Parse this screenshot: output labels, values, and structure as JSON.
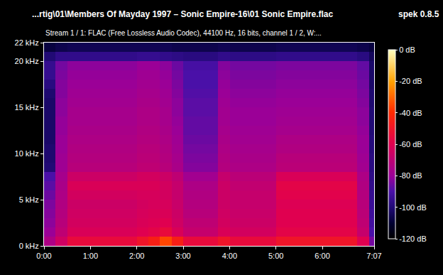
{
  "chart_data": {
    "type": "heatmap",
    "title": "...rtig\\01\\Members Of Mayday 1997 – Sonic Empire-16\\01 Sonic Empire.flac",
    "subtitle": "Stream 1 / 1: FLAC (Free Lossless Audio Codec), 44100 Hz, 16 bits, channel 1 / 2, W:...",
    "annotations": [
      {
        "text": "spek 0.8.5"
      }
    ],
    "grid": false,
    "xlim": [
      0,
      427
    ],
    "xticks": [
      {
        "value": 0,
        "label": "0:00"
      },
      {
        "value": 60,
        "label": "1:00"
      },
      {
        "value": 120,
        "label": "2:00"
      },
      {
        "value": 180,
        "label": "3:00"
      },
      {
        "value": 240,
        "label": "4:00"
      },
      {
        "value": 300,
        "label": "5:00"
      },
      {
        "value": 360,
        "label": "6:00"
      },
      {
        "value": 427,
        "label": "7:07"
      }
    ],
    "ylim": [
      0,
      22
    ],
    "yticks": [
      {
        "value": 0,
        "label": "0 kHz"
      },
      {
        "value": 5,
        "label": "5 kHz"
      },
      {
        "value": 10,
        "label": "10 kHz"
      },
      {
        "value": 15,
        "label": "15 kHz"
      },
      {
        "value": 20,
        "label": "20 kHz"
      },
      {
        "value": 22,
        "label": "22 kHz"
      }
    ],
    "colorbar": {
      "range": [
        -120,
        0
      ],
      "ticks": [
        {
          "value": 0,
          "label": "0 dB"
        },
        {
          "value": -20,
          "label": "-20 dB"
        },
        {
          "value": -40,
          "label": "-40 dB"
        },
        {
          "value": -60,
          "label": "-60 dB"
        },
        {
          "value": -80,
          "label": "-80 dB"
        },
        {
          "value": -100,
          "label": "-100 dB"
        },
        {
          "value": -120,
          "label": "-120 dB"
        }
      ]
    },
    "x": [
      7.5,
      22.5,
      37.5,
      52.5,
      67.5,
      82.5,
      97.5,
      112.5,
      127.5,
      142.5,
      157.5,
      172.5,
      187.5,
      202.5,
      217.5,
      232.5,
      247.5,
      262.5,
      277.5,
      292.5,
      307.5,
      322.5,
      337.5,
      352.5,
      367.5,
      382.5,
      397.5,
      412.5,
      427.5
    ],
    "y": [
      0.5,
      1.5,
      2.5,
      3.5,
      4.5,
      5.5,
      6.5,
      7.5,
      8.5,
      9.5,
      10.5,
      11.5,
      12.5,
      13.5,
      14.5,
      15.5,
      16.5,
      17.5,
      18.5,
      19.5,
      20.5,
      21.5
    ],
    "cells": [
      [
        -75,
        -65,
        -55,
        -55,
        -55,
        -55,
        -55,
        -55,
        -50,
        -45,
        -35,
        -45,
        -55,
        -55,
        -55,
        -50,
        -55,
        -55,
        -55,
        -55,
        -50,
        -50,
        -50,
        -50,
        -50,
        -50,
        -50,
        -60,
        -85
      ],
      [
        -80,
        -70,
        -62,
        -62,
        -62,
        -62,
        -62,
        -62,
        -60,
        -58,
        -55,
        -62,
        -68,
        -68,
        -68,
        -62,
        -64,
        -64,
        -64,
        -64,
        -58,
        -58,
        -58,
        -58,
        -58,
        -58,
        -58,
        -68,
        -90
      ],
      [
        -82,
        -72,
        -64,
        -64,
        -64,
        -64,
        -64,
        -64,
        -62,
        -61,
        -60,
        -65,
        -70,
        -70,
        -70,
        -64,
        -66,
        -66,
        -66,
        -66,
        -60,
        -60,
        -60,
        -60,
        -60,
        -60,
        -60,
        -70,
        -92
      ],
      [
        -83,
        -73,
        -65,
        -65,
        -65,
        -65,
        -65,
        -65,
        -63,
        -62,
        -62,
        -66,
        -72,
        -72,
        -72,
        -65,
        -67,
        -67,
        -67,
        -67,
        -60,
        -60,
        -60,
        -60,
        -60,
        -60,
        -60,
        -71,
        -93
      ],
      [
        -84,
        -74,
        -66,
        -66,
        -66,
        -66,
        -66,
        -66,
        -64,
        -63,
        -63,
        -67,
        -73,
        -73,
        -73,
        -66,
        -68,
        -68,
        -68,
        -68,
        -61,
        -61,
        -61,
        -61,
        -61,
        -61,
        -61,
        -72,
        -94
      ],
      [
        -86,
        -75,
        -64,
        -64,
        -64,
        -64,
        -64,
        -64,
        -63,
        -63,
        -64,
        -68,
        -74,
        -74,
        -74,
        -66,
        -68,
        -68,
        -68,
        -68,
        -59,
        -59,
        -59,
        -59,
        -59,
        -59,
        -59,
        -73,
        -95
      ],
      [
        -88,
        -76,
        -62,
        -62,
        -62,
        -62,
        -62,
        -62,
        -62,
        -62,
        -64,
        -68,
        -75,
        -75,
        -75,
        -66,
        -69,
        -69,
        -69,
        -69,
        -58,
        -58,
        -58,
        -58,
        -58,
        -58,
        -58,
        -74,
        -96
      ],
      [
        -90,
        -77,
        -66,
        -66,
        -66,
        -66,
        -66,
        -66,
        -64,
        -64,
        -66,
        -70,
        -78,
        -78,
        -78,
        -68,
        -71,
        -71,
        -71,
        -71,
        -62,
        -62,
        -62,
        -62,
        -62,
        -62,
        -62,
        -75,
        -97
      ],
      [
        -100,
        -79,
        -72,
        -72,
        -72,
        -72,
        -72,
        -72,
        -70,
        -70,
        -72,
        -76,
        -83,
        -83,
        -83,
        -73,
        -75,
        -75,
        -75,
        -75,
        -71,
        -71,
        -71,
        -71,
        -71,
        -71,
        -71,
        -78,
        -98
      ],
      [
        -101,
        -79,
        -73,
        -73,
        -73,
        -73,
        -73,
        -73,
        -71,
        -71,
        -73,
        -77,
        -84,
        -84,
        -84,
        -74,
        -76,
        -76,
        -76,
        -76,
        -72,
        -72,
        -72,
        -72,
        -72,
        -72,
        -72,
        -79,
        -98
      ],
      [
        -101,
        -80,
        -74,
        -74,
        -74,
        -74,
        -74,
        -74,
        -72,
        -72,
        -74,
        -78,
        -85,
        -85,
        -85,
        -75,
        -77,
        -77,
        -77,
        -77,
        -74,
        -74,
        -74,
        -74,
        -74,
        -74,
        -74,
        -80,
        -99
      ],
      [
        -102,
        -80,
        -75,
        -75,
        -75,
        -75,
        -75,
        -75,
        -73,
        -73,
        -75,
        -79,
        -86,
        -86,
        -86,
        -76,
        -78,
        -78,
        -78,
        -78,
        -75,
        -75,
        -75,
        -75,
        -75,
        -75,
        -75,
        -80,
        -99
      ],
      [
        -102,
        -81,
        -76,
        -76,
        -76,
        -76,
        -76,
        -76,
        -74,
        -74,
        -76,
        -80,
        -87,
        -87,
        -87,
        -77,
        -79,
        -79,
        -79,
        -79,
        -77,
        -77,
        -77,
        -77,
        -77,
        -77,
        -77,
        -81,
        -100
      ],
      [
        -102,
        -81,
        -77,
        -77,
        -77,
        -77,
        -77,
        -77,
        -75,
        -75,
        -77,
        -81,
        -87,
        -87,
        -87,
        -78,
        -80,
        -80,
        -80,
        -80,
        -78,
        -78,
        -78,
        -78,
        -78,
        -78,
        -78,
        -82,
        -100
      ],
      [
        -102,
        -82,
        -77,
        -77,
        -77,
        -77,
        -77,
        -77,
        -75,
        -75,
        -77,
        -82,
        -88,
        -88,
        -88,
        -78,
        -80,
        -80,
        -80,
        -80,
        -79,
        -79,
        -79,
        -79,
        -79,
        -79,
        -79,
        -82,
        -100
      ],
      [
        -102,
        -82,
        -78,
        -78,
        -78,
        -78,
        -78,
        -78,
        -76,
        -76,
        -78,
        -82,
        -88,
        -88,
        -88,
        -79,
        -81,
        -81,
        -81,
        -81,
        -80,
        -80,
        -80,
        -80,
        -80,
        -80,
        -80,
        -83,
        -101
      ],
      [
        -101,
        -83,
        -79,
        -79,
        -79,
        -79,
        -79,
        -79,
        -77,
        -77,
        -79,
        -83,
        -89,
        -89,
        -89,
        -80,
        -82,
        -82,
        -82,
        -82,
        -81,
        -81,
        -81,
        -81,
        -81,
        -81,
        -81,
        -84,
        -101
      ],
      [
        -98,
        -83,
        -80,
        -80,
        -80,
        -80,
        -80,
        -80,
        -78,
        -78,
        -80,
        -84,
        -90,
        -90,
        -90,
        -81,
        -83,
        -83,
        -83,
        -83,
        -82,
        -82,
        -82,
        -82,
        -82,
        -82,
        -82,
        -85,
        -102
      ],
      [
        -95,
        -84,
        -81,
        -81,
        -81,
        -81,
        -81,
        -81,
        -79,
        -79,
        -81,
        -85,
        -90,
        -90,
        -90,
        -82,
        -84,
        -84,
        -84,
        -84,
        -83,
        -83,
        -83,
        -83,
        -83,
        -83,
        -83,
        -86,
        -102
      ],
      [
        -95,
        -85,
        -82,
        -82,
        -82,
        -82,
        -82,
        -82,
        -80,
        -80,
        -82,
        -86,
        -91,
        -91,
        -91,
        -83,
        -85,
        -85,
        -85,
        -85,
        -84,
        -84,
        -84,
        -84,
        -84,
        -84,
        -84,
        -87,
        -102
      ],
      [
        -100,
        -96,
        -96,
        -96,
        -96,
        -96,
        -96,
        -96,
        -95,
        -95,
        -96,
        -97,
        -98,
        -98,
        -98,
        -96,
        -97,
        -97,
        -97,
        -97,
        -96,
        -96,
        -96,
        -96,
        -96,
        -96,
        -96,
        -98,
        -104
      ],
      [
        -108,
        -106,
        -105,
        -105,
        -105,
        -105,
        -105,
        -105,
        -105,
        -105,
        -105,
        -106,
        -106,
        -106,
        -106,
        -105,
        -106,
        -106,
        -106,
        -106,
        -105,
        -105,
        -105,
        -105,
        -105,
        -105,
        -105,
        -106,
        -108
      ]
    ]
  }
}
